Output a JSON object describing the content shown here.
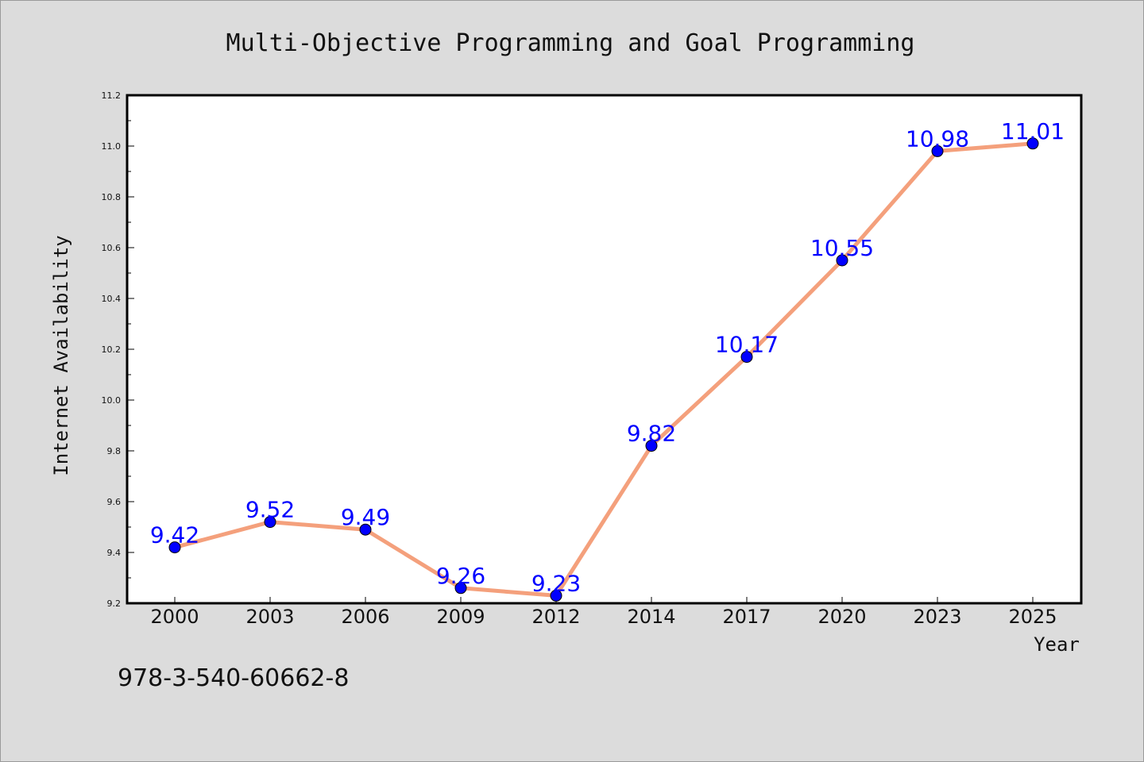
{
  "chart_data": {
    "type": "line",
    "title": "Multi-Objective Programming and Goal Programming",
    "xlabel": "Year",
    "ylabel": "Internet Availability",
    "categories": [
      "2000",
      "2003",
      "2006",
      "2009",
      "2012",
      "2014",
      "2017",
      "2020",
      "2023",
      "2025"
    ],
    "values": [
      9.42,
      9.52,
      9.49,
      9.26,
      9.23,
      9.82,
      10.17,
      10.55,
      10.98,
      11.01
    ],
    "data_labels": [
      "9.42",
      "9.52",
      "9.49",
      "9.26",
      "9.23",
      "9.82",
      "10.17",
      "10.55",
      "10.98",
      "11.01"
    ],
    "ylim": [
      9.2,
      11.2
    ],
    "yticks": [
      "9.2",
      "9.4",
      "9.6",
      "9.8",
      "10.0",
      "10.2",
      "10.4",
      "10.6",
      "10.8",
      "11.0",
      "11.2"
    ],
    "grid": false,
    "colors": {
      "line": "#f4a07c",
      "marker": "#0000ff",
      "label": "#0000ff"
    }
  },
  "footnote": "978-3-540-60662-8"
}
